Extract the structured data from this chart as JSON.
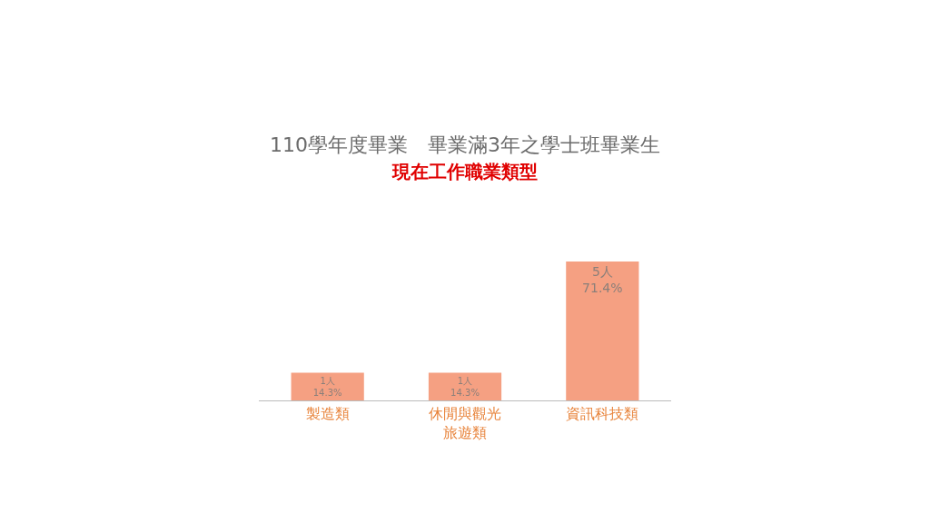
{
  "chart_data": {
    "type": "bar",
    "title": "110學年度畢業　畢業滿3年之學士班畢業生",
    "subtitle": "現在工作職業類型",
    "categories": [
      "製造類",
      "休閒與觀光旅遊類",
      "資訊科技類"
    ],
    "values": [
      1,
      1,
      5
    ],
    "value_labels": [
      "1人 14.3%",
      "1人 14.3%",
      "5人 71.4%"
    ],
    "color": "#f5a082",
    "legend": false
  }
}
